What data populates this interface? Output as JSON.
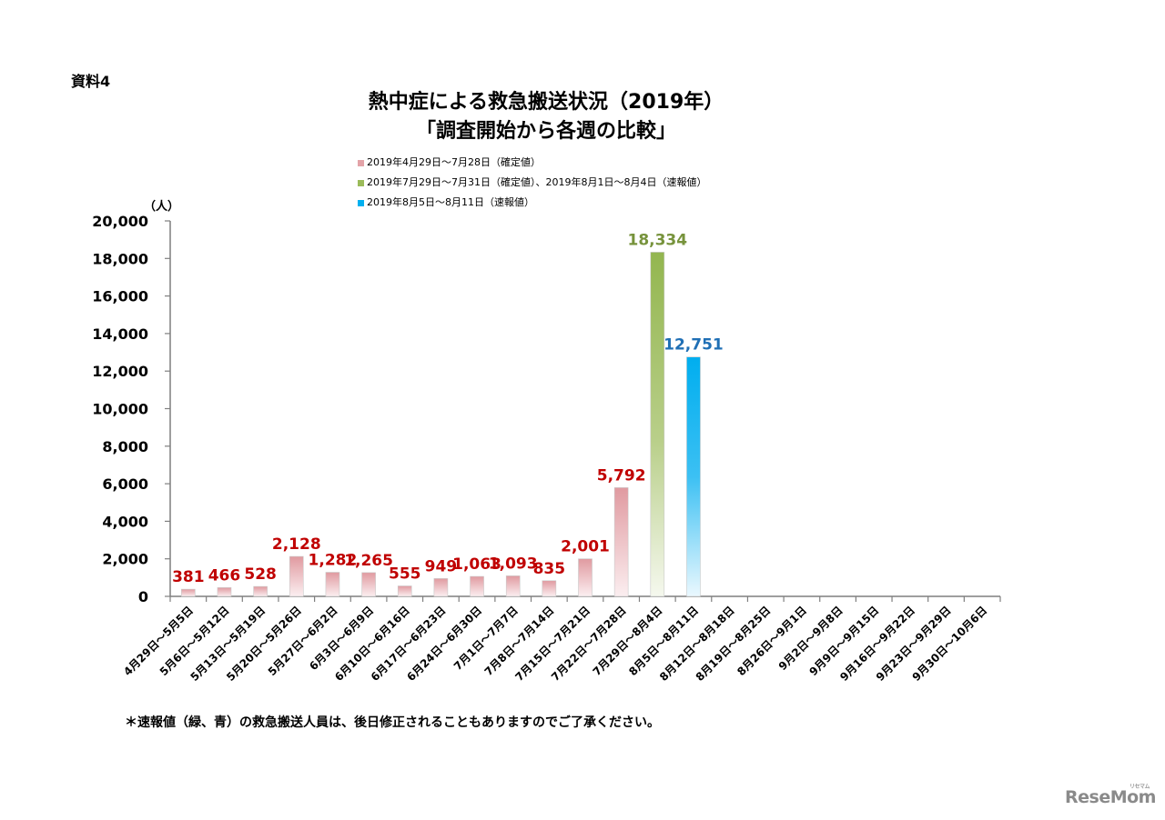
{
  "doc_label": "資料4",
  "title_line1": "熱中症による救急搬送状況（2019年）",
  "title_line2": "「調査開始から各週の比較」",
  "legend": [
    {
      "label": "2019年4月29日～7月28日（確定値）",
      "color": "#e3a3a8"
    },
    {
      "label": "2019年7月29日～7月31日（確定値）、2019年8月1日～8月4日（速報値）",
      "color": "#9bbb59"
    },
    {
      "label": "2019年8月5日～8月11日（速報値）",
      "color": "#00b0f0"
    }
  ],
  "unit_label": "（人）",
  "footnote": "＊速報値（緑、青）の救急搬送人員は、後日修正されることもありますのでご了承ください。",
  "brand": "ReseMom",
  "brand_sub": "リセマム",
  "colors": {
    "confirmed_bar": "#e3a3a8",
    "confirmed_label": "#c00000",
    "green_bar": "#9bbb59",
    "green_label": "#77933c",
    "blue_bar": "#00b0f0",
    "blue_label": "#1f6fb5",
    "axis": "#7f7f7f"
  },
  "chart_data": {
    "type": "bar",
    "title": "熱中症による救急搬送状況（2019年）「調査開始から各週の比較」",
    "xlabel": "",
    "ylabel": "（人）",
    "ylim": [
      0,
      20000
    ],
    "yticks": [
      0,
      2000,
      4000,
      6000,
      8000,
      10000,
      12000,
      14000,
      16000,
      18000,
      20000
    ],
    "ytick_labels": [
      "0",
      "2,000",
      "4,000",
      "6,000",
      "8,000",
      "10,000",
      "12,000",
      "14,000",
      "16,000",
      "18,000",
      "20,000"
    ],
    "grid": false,
    "legend_position": "top",
    "categories": [
      "4月29日～5月5日",
      "5月6日～5月12日",
      "5月13日～5月19日",
      "5月20日～5月26日",
      "5月27日～6月2日",
      "6月3日～6月9日",
      "6月10日～6月16日",
      "6月17日～6月23日",
      "6月24日～6月30日",
      "7月1日～7月7日",
      "7月8日～7月14日",
      "7月15日～7月21日",
      "7月22日～7月28日",
      "7月29日～8月4日",
      "8月5日～8月11日",
      "8月12日～8月18日",
      "8月19日～8月25日",
      "8月26日～9月1日",
      "9月2日～9月8日",
      "9月9日～9月15日",
      "9月16日～9月22日",
      "9月23日～9月29日",
      "9月30日～10月6日"
    ],
    "values": [
      381,
      466,
      528,
      2128,
      1282,
      1265,
      555,
      949,
      1063,
      1093,
      835,
      2001,
      5792,
      18334,
      12751,
      null,
      null,
      null,
      null,
      null,
      null,
      null,
      null
    ],
    "value_labels": [
      "381",
      "466",
      "528",
      "2,128",
      "1,282",
      "1,265",
      "555",
      "949",
      "1,063",
      "1,093",
      "835",
      "2,001",
      "5,792",
      "18,334",
      "12,751",
      "",
      "",
      "",
      "",
      "",
      "",
      "",
      ""
    ],
    "series_group": [
      "confirmed",
      "confirmed",
      "confirmed",
      "confirmed",
      "confirmed",
      "confirmed",
      "confirmed",
      "confirmed",
      "confirmed",
      "confirmed",
      "confirmed",
      "confirmed",
      "confirmed",
      "green",
      "blue",
      "",
      "",
      "",
      "",
      "",
      "",
      "",
      ""
    ]
  }
}
